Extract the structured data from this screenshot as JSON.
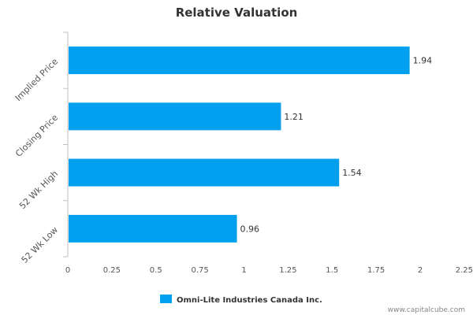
{
  "chart_data": {
    "type": "bar",
    "orientation": "horizontal",
    "title": "Relative Valuation",
    "categories": [
      "Implied Price",
      "Closing Price",
      "52 Wk High",
      "52 Wk Low"
    ],
    "series": [
      {
        "name": "Omni-Lite Industries Canada Inc.",
        "values": [
          1.94,
          1.21,
          1.54,
          0.96
        ],
        "color": "#00a0ee"
      }
    ],
    "data_labels": [
      "1.94",
      "1.21",
      "1.54",
      "0.96"
    ],
    "xlim": [
      0,
      2.25
    ],
    "x_ticks": [
      0,
      0.25,
      0.5,
      0.75,
      1,
      1.25,
      1.5,
      1.75,
      2,
      2.25
    ],
    "x_tick_labels": [
      "0",
      "0.25",
      "0.5",
      "0.75",
      "1",
      "1.25",
      "1.5",
      "1.75",
      "2",
      "2.25"
    ],
    "grid": false,
    "legend_position": "bottom-center"
  },
  "source_text": "www.capitalcube.com"
}
